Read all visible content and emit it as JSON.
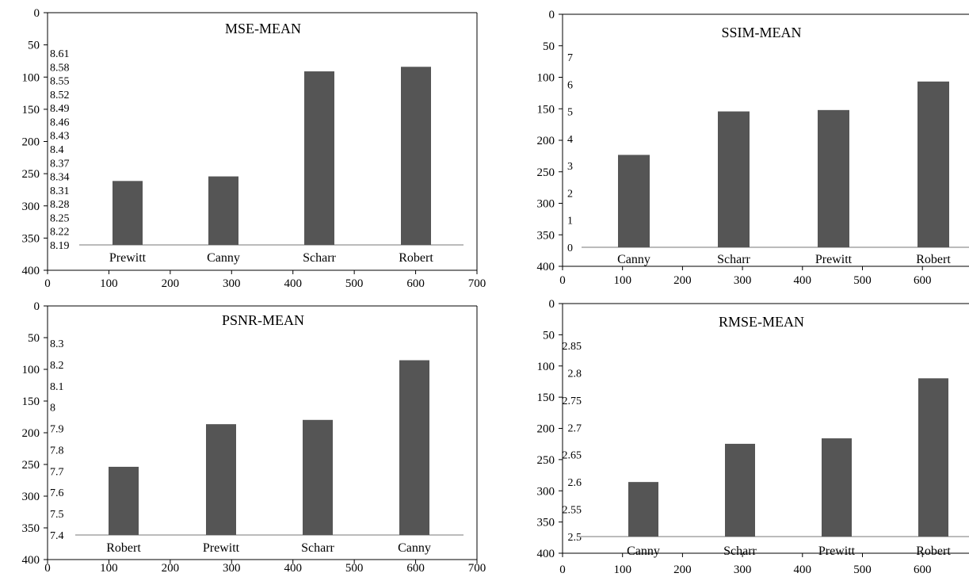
{
  "colors": {
    "bar": "#555555",
    "baseline": "#bbbbbb",
    "frame": "#000000"
  },
  "chart_data": [
    {
      "type": "bar",
      "title": "MSE-MEAN",
      "categories": [
        "Prewitt",
        "Canny",
        "Scharr",
        "Robert"
      ],
      "values": [
        8.33,
        8.34,
        8.57,
        8.58
      ],
      "inner_axis_ticks": [
        "8.19",
        "8.22",
        "8.25",
        "8.28",
        "8.31",
        "8.34",
        "8.37",
        "8.4",
        "8.43",
        "8.46",
        "8.49",
        "8.52",
        "8.55",
        "8.58",
        "8.61"
      ],
      "inner_ylim": [
        8.19,
        8.61
      ],
      "frame_x_ticks": [
        "0",
        "100",
        "200",
        "300",
        "400",
        "500",
        "600",
        "700"
      ],
      "frame_y_ticks": [
        "0",
        "50",
        "100",
        "150",
        "200",
        "250",
        "300",
        "350",
        "400"
      ],
      "grid": false,
      "legend": "none"
    },
    {
      "type": "bar",
      "title": "SSIM-MEAN",
      "categories": [
        "Canny",
        "Scharr",
        "Prewitt",
        "Robert"
      ],
      "values": [
        3.4,
        5.0,
        5.05,
        6.1
      ],
      "inner_axis_ticks": [
        "0",
        "1",
        "2",
        "3",
        "4",
        "5",
        "6",
        "7"
      ],
      "inner_ylim": [
        0,
        7
      ],
      "frame_x_ticks": [
        "0",
        "100",
        "200",
        "300",
        "400",
        "500",
        "600"
      ],
      "frame_y_ticks": [
        "0",
        "50",
        "100",
        "150",
        "200",
        "250",
        "300",
        "350",
        "400"
      ],
      "grid": false,
      "legend": "none"
    },
    {
      "type": "bar",
      "title": "PSNR-MEAN",
      "categories": [
        "Robert",
        "Prewitt",
        "Scharr",
        "Canny"
      ],
      "values": [
        7.72,
        7.92,
        7.94,
        8.22
      ],
      "inner_axis_ticks": [
        "7.4",
        "7.5",
        "7.6",
        "7.7",
        "7.8",
        "7.9",
        "8",
        "8.1",
        "8.2",
        "8.3"
      ],
      "inner_ylim": [
        7.4,
        8.3
      ],
      "frame_x_ticks": [
        "0",
        "100",
        "200",
        "300",
        "400",
        "500",
        "600",
        "700"
      ],
      "frame_y_ticks": [
        "0",
        "50",
        "100",
        "150",
        "200",
        "250",
        "300",
        "350",
        "400"
      ],
      "grid": false,
      "legend": "none"
    },
    {
      "type": "bar",
      "title": "RMSE-MEAN",
      "categories": [
        "Canny",
        "Scharr",
        "Prewitt",
        "Robert"
      ],
      "values": [
        2.6,
        2.67,
        2.68,
        2.79
      ],
      "inner_axis_ticks": [
        "2.5",
        "2.55",
        "2.6",
        "2.65",
        "2.7",
        "2.75",
        "2.8",
        "2.85"
      ],
      "inner_ylim": [
        2.5,
        2.85
      ],
      "frame_x_ticks": [
        "0",
        "100",
        "200",
        "300",
        "400",
        "500",
        "600"
      ],
      "frame_y_ticks": [
        "0",
        "50",
        "100",
        "150",
        "200",
        "250",
        "300",
        "350",
        "400"
      ],
      "grid": false,
      "legend": "none"
    }
  ]
}
